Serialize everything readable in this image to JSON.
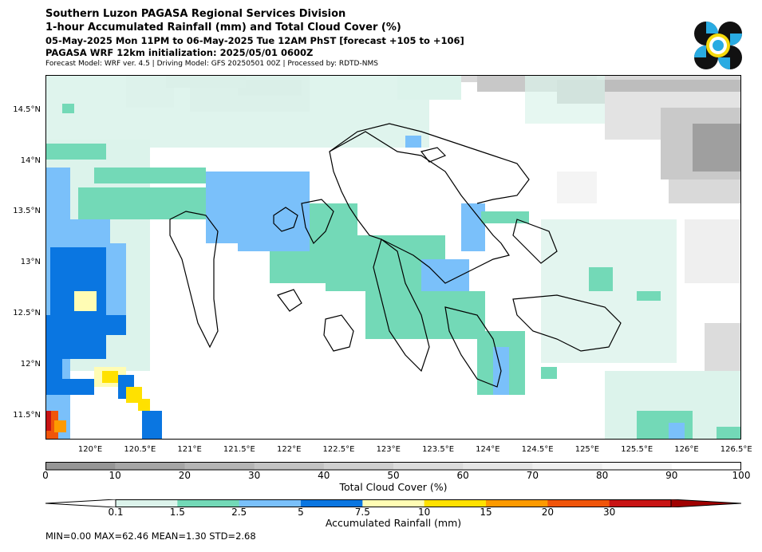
{
  "header": {
    "line1": "Southern Luzon PAGASA Regional Services Division",
    "line2": "1-hour Accumulated Rainfall (mm) and Total Cloud Cover (%)",
    "line3": "05-May-2025 Mon 11PM to 06-May-2025 Tue 12AM PhST [forecast +105 to +106]",
    "line4": "PAGASA WRF 12km initialization: 2025/05/01 0600Z",
    "line5": "Forecast Model: WRF ver. 4.5 | Driving Model: GFS 20250501 00Z | Processed by: RDTD-NMS"
  },
  "logo": {
    "icon": "pagasa-logo",
    "colors": [
      "#111111",
      "#29abe2",
      "#f5d90a"
    ]
  },
  "map": {
    "lat_labels": [
      "14.5°N",
      "14°N",
      "13.5°N",
      "13°N",
      "12.5°N",
      "12°N",
      "11.5°N"
    ],
    "lat_values": [
      14.5,
      14.0,
      13.5,
      13.0,
      12.5,
      12.0,
      11.5
    ],
    "lon_labels": [
      "120°E",
      "120.5°E",
      "121°E",
      "121.5°E",
      "122°E",
      "122.5°E",
      "123°E",
      "123.5°E",
      "124°E",
      "124.5°E",
      "125°E",
      "125.5°E",
      "126°E",
      "126.5°E"
    ],
    "lon_values": [
      120.0,
      120.5,
      121.0,
      121.5,
      122.0,
      122.5,
      123.0,
      123.5,
      124.0,
      124.5,
      125.0,
      125.5,
      126.0,
      126.5
    ],
    "extent": {
      "lon_min": 119.55,
      "lon_max": 126.55,
      "lat_min": 11.27,
      "lat_max": 14.85
    }
  },
  "cloud_colorbar": {
    "title": "Total Cloud Cover (%)",
    "ticks": [
      "0",
      "10",
      "20",
      "30",
      "40",
      "50",
      "60",
      "70",
      "80",
      "90",
      "100"
    ],
    "colors": [
      "#969696",
      "#a6a6a6",
      "#b5b5b5",
      "#c3c3c3",
      "#d0d0d0",
      "#dcdcdc",
      "#e6e6e6",
      "#efefef",
      "#f7f7f7",
      "#ffffff"
    ]
  },
  "rain_colorbar": {
    "title": "Accumulated Rainfall (mm)",
    "ticks": [
      "0.1",
      "1.5",
      "2.5",
      "5",
      "7.5",
      "10",
      "15",
      "20",
      "30"
    ],
    "colors": [
      "#ffffff",
      "#dcf3eb",
      "#73d9b7",
      "#7ac0fa",
      "#0a76e1",
      "#fffcb4",
      "#ffe100",
      "#fd9a00",
      "#f0550a",
      "#c81414",
      "#a00000"
    ]
  },
  "stats": {
    "min": 0.0,
    "max": 62.46,
    "mean": 1.3,
    "std": 2.68,
    "text": "MIN=0.00   MAX=62.46   MEAN=1.30   STD=2.68"
  }
}
